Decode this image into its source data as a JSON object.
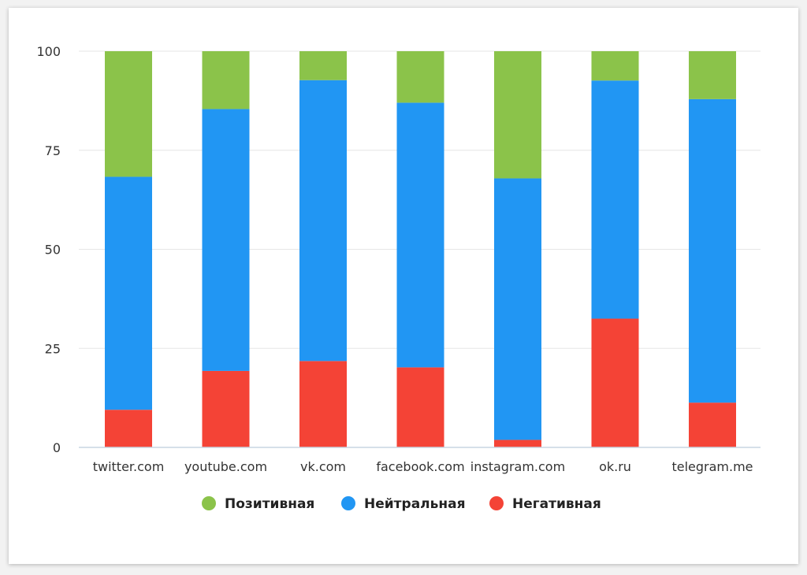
{
  "chart_data": {
    "type": "bar",
    "stacked": true,
    "categories": [
      "twitter.com",
      "youtube.com",
      "vk.com",
      "facebook.com",
      "instagram.com",
      "ok.ru",
      "telegram.me"
    ],
    "series": [
      {
        "name": "Негативная",
        "color": "#f44336",
        "values": [
          9.5,
          19.3,
          21.8,
          20.2,
          1.9,
          32.5,
          11.3
        ]
      },
      {
        "name": "Нейтральная",
        "color": "#2196f3",
        "values": [
          58.8,
          66.1,
          70.9,
          66.8,
          66.0,
          60.1,
          76.6
        ]
      },
      {
        "name": "Позитивная",
        "color": "#8bc34a",
        "values": [
          31.7,
          14.6,
          7.3,
          13.0,
          32.1,
          7.4,
          12.1
        ]
      }
    ],
    "legend_order": [
      "Позитивная",
      "Нейтральная",
      "Негативная"
    ],
    "yticks": [
      0,
      25,
      50,
      75,
      100
    ],
    "ylim": [
      0,
      100
    ],
    "grid": true,
    "legend_position": "bottom",
    "title": "",
    "xlabel": "",
    "ylabel": ""
  }
}
